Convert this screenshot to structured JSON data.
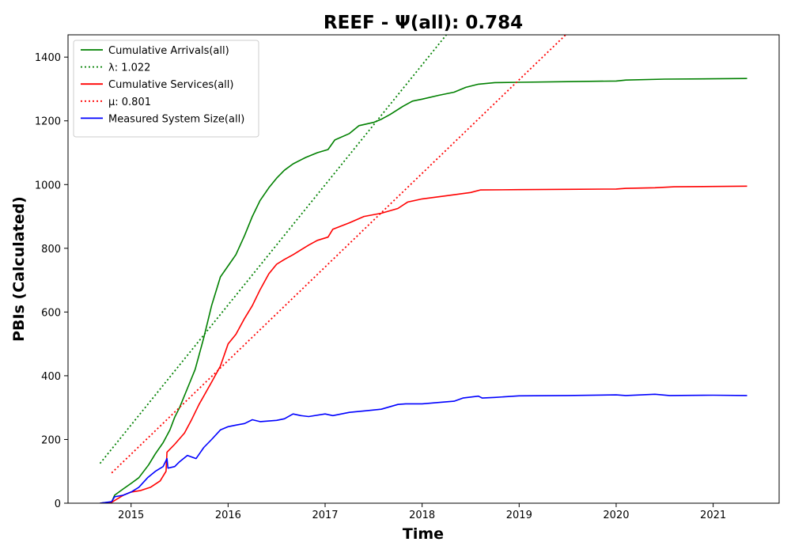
{
  "chart_data": {
    "type": "line",
    "title": "REEF -  Ψ(all): 0.784",
    "xlabel": "Time",
    "ylabel": "PBIs (Calculated)",
    "xlim": [
      2014.35,
      2021.68
    ],
    "ylim": [
      0,
      1470
    ],
    "x_ticks": [
      "2015",
      "2016",
      "2017",
      "2018",
      "2019",
      "2020",
      "2021"
    ],
    "y_ticks": [
      "0",
      "200",
      "400",
      "600",
      "800",
      "1000",
      "1200",
      "1400"
    ],
    "grid": false,
    "legend_position": "top-left",
    "series": [
      {
        "name": "Cumulative Arrivals(all)",
        "style": "solid",
        "color": "#008000",
        "points": [
          [
            2014.68,
            0
          ],
          [
            2014.8,
            4
          ],
          [
            2014.83,
            25
          ],
          [
            2014.92,
            45
          ],
          [
            2015.0,
            62
          ],
          [
            2015.08,
            80
          ],
          [
            2015.18,
            120
          ],
          [
            2015.25,
            155
          ],
          [
            2015.33,
            190
          ],
          [
            2015.4,
            230
          ],
          [
            2015.45,
            270
          ],
          [
            2015.5,
            300
          ],
          [
            2015.58,
            360
          ],
          [
            2015.66,
            420
          ],
          [
            2015.75,
            520
          ],
          [
            2015.83,
            620
          ],
          [
            2015.92,
            710
          ],
          [
            2016.0,
            745
          ],
          [
            2016.08,
            780
          ],
          [
            2016.17,
            840
          ],
          [
            2016.25,
            900
          ],
          [
            2016.33,
            950
          ],
          [
            2016.42,
            990
          ],
          [
            2016.5,
            1020
          ],
          [
            2016.58,
            1045
          ],
          [
            2016.67,
            1065
          ],
          [
            2016.8,
            1085
          ],
          [
            2016.92,
            1100
          ],
          [
            2017.03,
            1110
          ],
          [
            2017.1,
            1140
          ],
          [
            2017.25,
            1160
          ],
          [
            2017.35,
            1185
          ],
          [
            2017.5,
            1195
          ],
          [
            2017.58,
            1205
          ],
          [
            2017.67,
            1220
          ],
          [
            2017.8,
            1245
          ],
          [
            2017.9,
            1262
          ],
          [
            2018.0,
            1268
          ],
          [
            2018.17,
            1280
          ],
          [
            2018.33,
            1290
          ],
          [
            2018.45,
            1305
          ],
          [
            2018.58,
            1315
          ],
          [
            2018.75,
            1320
          ],
          [
            2019.0,
            1321
          ],
          [
            2019.5,
            1323
          ],
          [
            2020.0,
            1325
          ],
          [
            2020.1,
            1328
          ],
          [
            2020.5,
            1331
          ],
          [
            2021.0,
            1332
          ],
          [
            2021.35,
            1333
          ]
        ]
      },
      {
        "name": "λ: 1.022",
        "style": "dotted",
        "color": "#008000",
        "points": [
          [
            2014.68,
            125
          ],
          [
            2018.25,
            1470
          ]
        ]
      },
      {
        "name": "Cumulative Services(all)",
        "style": "solid",
        "color": "#ff0000",
        "points": [
          [
            2014.68,
            0
          ],
          [
            2014.8,
            3
          ],
          [
            2014.92,
            25
          ],
          [
            2015.0,
            35
          ],
          [
            2015.1,
            40
          ],
          [
            2015.2,
            50
          ],
          [
            2015.3,
            70
          ],
          [
            2015.36,
            100
          ],
          [
            2015.37,
            160
          ],
          [
            2015.45,
            185
          ],
          [
            2015.55,
            220
          ],
          [
            2015.62,
            260
          ],
          [
            2015.7,
            310
          ],
          [
            2015.83,
            380
          ],
          [
            2015.92,
            430
          ],
          [
            2016.0,
            500
          ],
          [
            2016.08,
            530
          ],
          [
            2016.17,
            580
          ],
          [
            2016.25,
            620
          ],
          [
            2016.33,
            670
          ],
          [
            2016.42,
            720
          ],
          [
            2016.5,
            750
          ],
          [
            2016.58,
            765
          ],
          [
            2016.67,
            780
          ],
          [
            2016.75,
            795
          ],
          [
            2016.83,
            810
          ],
          [
            2016.92,
            825
          ],
          [
            2017.03,
            835
          ],
          [
            2017.08,
            860
          ],
          [
            2017.25,
            880
          ],
          [
            2017.4,
            900
          ],
          [
            2017.58,
            910
          ],
          [
            2017.75,
            925
          ],
          [
            2017.85,
            945
          ],
          [
            2018.0,
            955
          ],
          [
            2018.25,
            965
          ],
          [
            2018.5,
            975
          ],
          [
            2018.6,
            983
          ],
          [
            2019.0,
            984
          ],
          [
            2019.5,
            985
          ],
          [
            2020.0,
            986
          ],
          [
            2020.1,
            988
          ],
          [
            2020.4,
            990
          ],
          [
            2020.6,
            993
          ],
          [
            2021.0,
            994
          ],
          [
            2021.35,
            995
          ]
        ]
      },
      {
        "name": "μ: 0.801",
        "style": "dotted",
        "color": "#ff0000",
        "points": [
          [
            2014.8,
            95
          ],
          [
            2019.48,
            1470
          ]
        ]
      },
      {
        "name": "Measured System Size(all)",
        "style": "solid",
        "color": "#0000ff",
        "points": [
          [
            2014.68,
            0
          ],
          [
            2014.8,
            5
          ],
          [
            2014.83,
            20
          ],
          [
            2014.92,
            25
          ],
          [
            2015.0,
            35
          ],
          [
            2015.08,
            50
          ],
          [
            2015.17,
            80
          ],
          [
            2015.25,
            100
          ],
          [
            2015.33,
            115
          ],
          [
            2015.37,
            140
          ],
          [
            2015.38,
            110
          ],
          [
            2015.45,
            115
          ],
          [
            2015.5,
            130
          ],
          [
            2015.58,
            150
          ],
          [
            2015.67,
            140
          ],
          [
            2015.75,
            175
          ],
          [
            2015.83,
            200
          ],
          [
            2015.92,
            230
          ],
          [
            2016.0,
            240
          ],
          [
            2016.08,
            245
          ],
          [
            2016.17,
            250
          ],
          [
            2016.25,
            262
          ],
          [
            2016.33,
            256
          ],
          [
            2016.5,
            260
          ],
          [
            2016.58,
            265
          ],
          [
            2016.67,
            280
          ],
          [
            2016.75,
            275
          ],
          [
            2016.83,
            272
          ],
          [
            2017.0,
            280
          ],
          [
            2017.08,
            275
          ],
          [
            2017.25,
            285
          ],
          [
            2017.42,
            290
          ],
          [
            2017.58,
            295
          ],
          [
            2017.75,
            310
          ],
          [
            2017.83,
            312
          ],
          [
            2018.0,
            312
          ],
          [
            2018.17,
            316
          ],
          [
            2018.33,
            320
          ],
          [
            2018.42,
            330
          ],
          [
            2018.58,
            336
          ],
          [
            2018.62,
            330
          ],
          [
            2018.75,
            332
          ],
          [
            2019.0,
            337
          ],
          [
            2019.5,
            338
          ],
          [
            2020.0,
            340
          ],
          [
            2020.1,
            338
          ],
          [
            2020.4,
            342
          ],
          [
            2020.55,
            338
          ],
          [
            2021.0,
            339
          ],
          [
            2021.35,
            338
          ]
        ]
      }
    ]
  }
}
